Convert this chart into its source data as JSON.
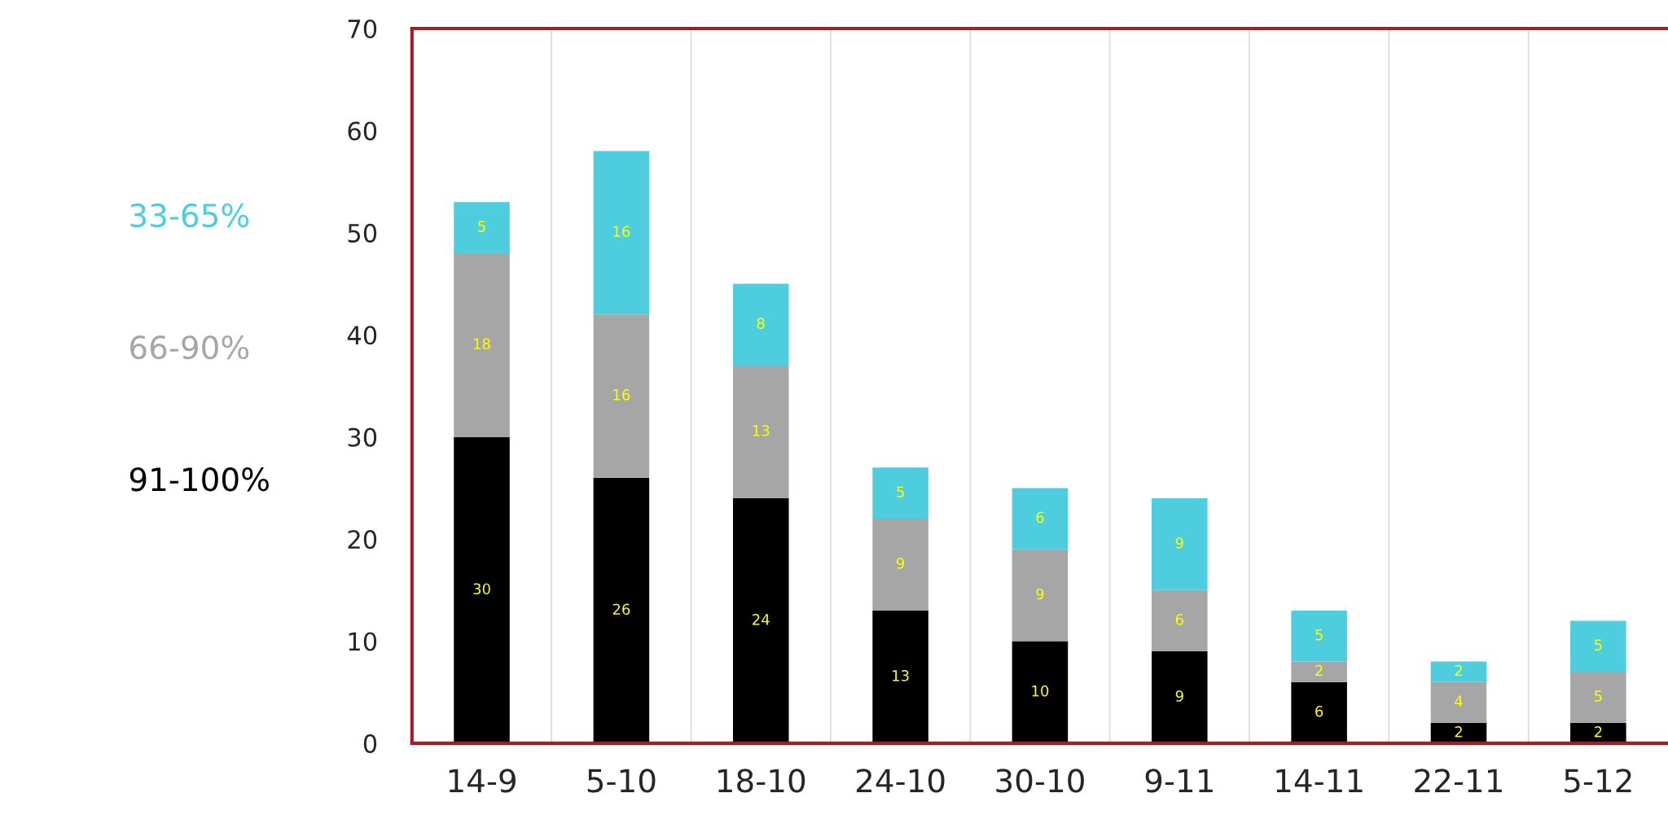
{
  "chart_data": {
    "type": "bar",
    "stacked": true,
    "categories": [
      "14-9",
      "5-10",
      "18-10",
      "24-10",
      "30-10",
      "9-11",
      "14-11",
      "22-11",
      "5-12"
    ],
    "series": [
      {
        "name": "91-100%",
        "color": "#000000",
        "values": [
          30,
          26,
          24,
          13,
          10,
          9,
          6,
          2,
          2
        ]
      },
      {
        "name": "66-90%",
        "color": "#a6a6a6",
        "values": [
          18,
          16,
          13,
          9,
          9,
          6,
          2,
          4,
          5
        ]
      },
      {
        "name": "33-65%",
        "color": "#4ecdde",
        "values": [
          5,
          16,
          8,
          5,
          6,
          9,
          5,
          2,
          5
        ]
      }
    ],
    "ylim": [
      0,
      70
    ],
    "yticks": [
      0,
      10,
      20,
      30,
      40,
      50,
      60,
      70
    ],
    "grid": "x",
    "legend": "left",
    "data_labels": true
  }
}
